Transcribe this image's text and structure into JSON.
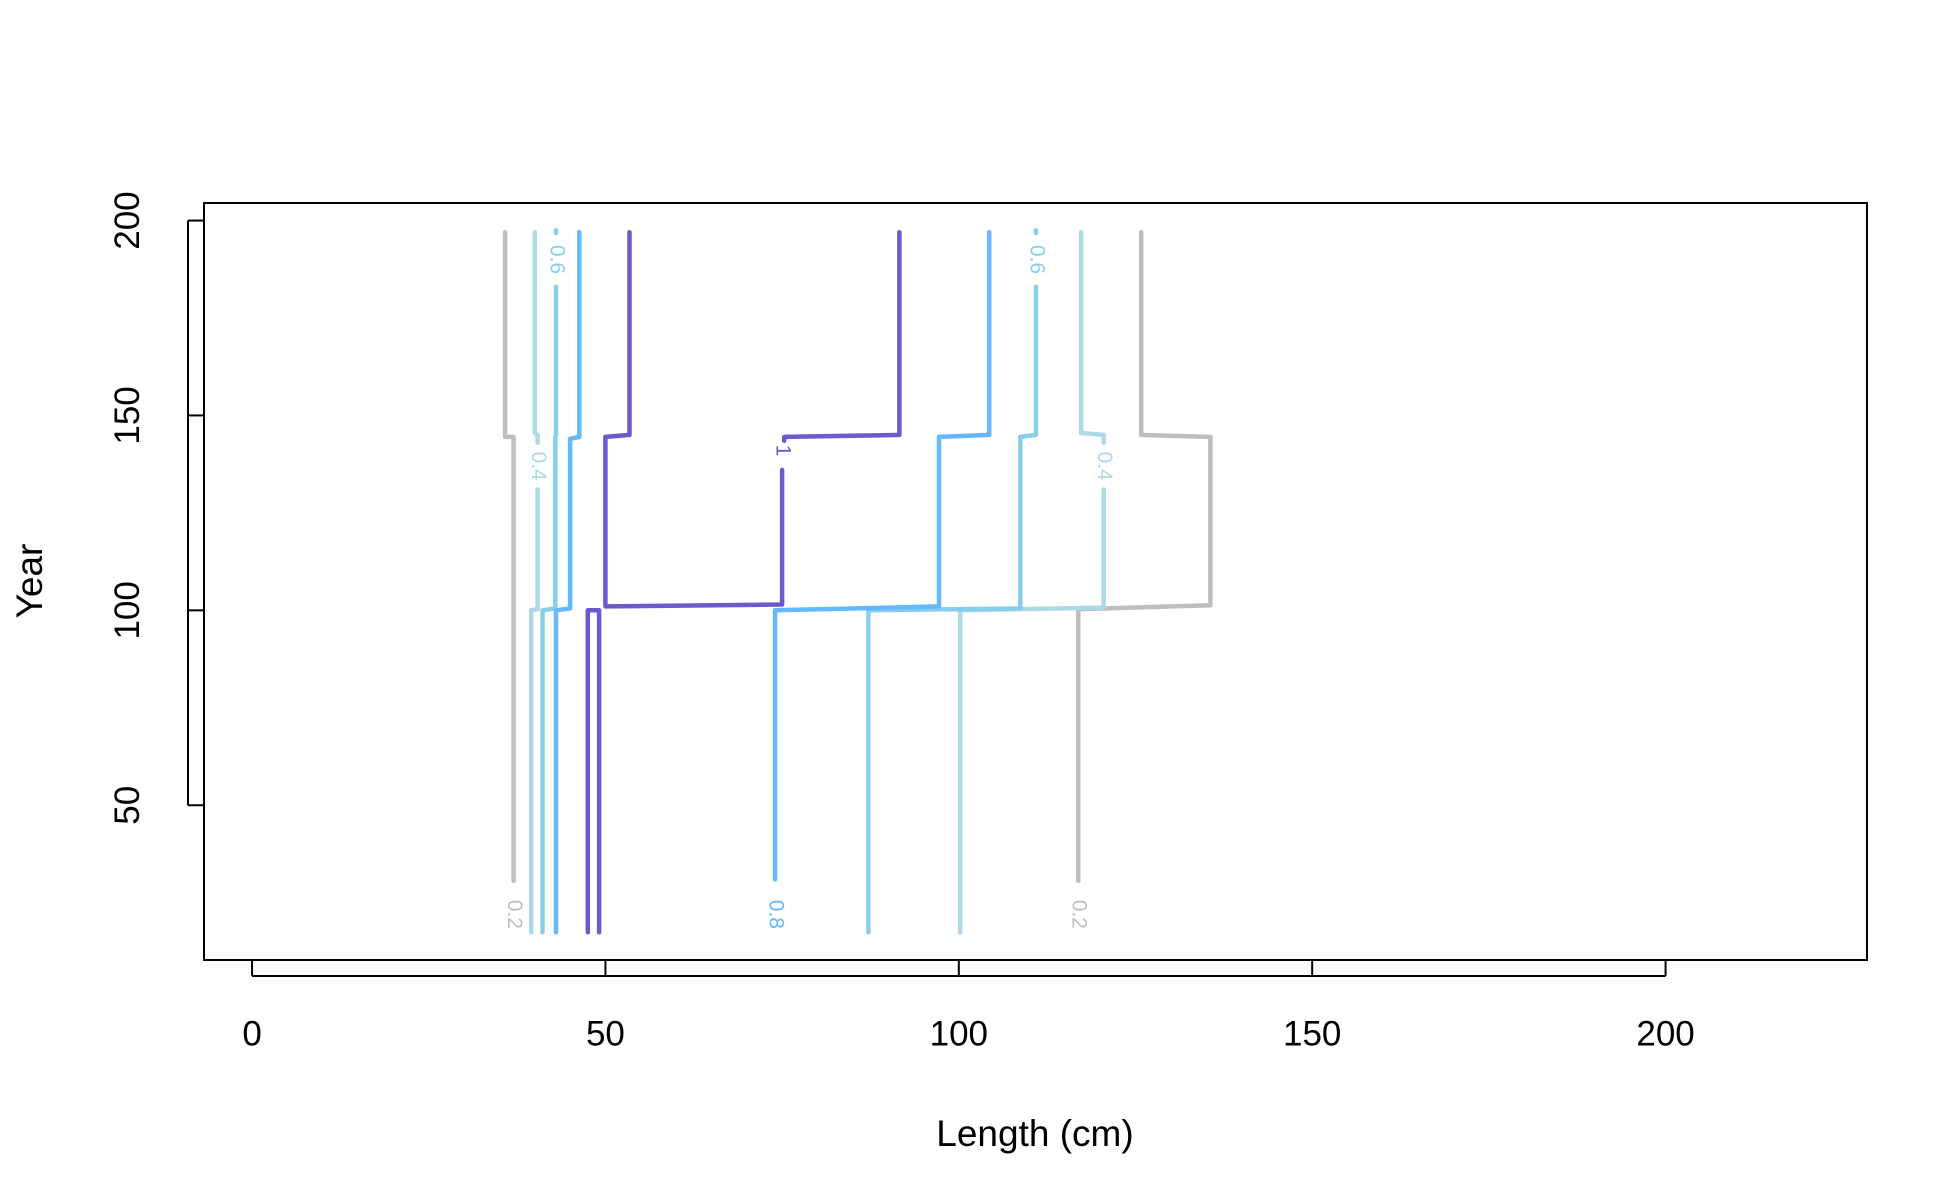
{
  "chart_data": {
    "type": "contour",
    "x_label": "Length (cm)",
    "y_label": "Year",
    "xlim": [
      -6.8,
      228.5
    ],
    "ylim": [
      10.3,
      204.5
    ],
    "xticks": [
      0,
      50,
      100,
      150,
      200
    ],
    "yticks": [
      50,
      100,
      150,
      200
    ],
    "series": [
      {
        "level": 0.2,
        "color": "#bebebe",
        "x": [
          35.8,
          35.8,
          37,
          37,
          null,
          125.8,
          125.8,
          135.6,
          135.6,
          116.9,
          116.9
        ],
        "y": [
          197,
          144.5,
          144.5,
          30.6,
          null,
          197,
          145,
          144.5,
          101.3,
          100.3,
          30.6
        ],
        "labels": [
          {
            "x": 37,
            "y": 22
          },
          {
            "x": 116.9,
            "y": 22
          }
        ]
      },
      {
        "level": 0.4,
        "color": "#add8e6",
        "x": [
          40,
          40,
          40.4,
          40.4,
          null,
          40.4,
          40.4,
          39.5,
          39.5,
          null,
          117.3,
          117.3,
          120.5,
          120.5,
          null,
          120.5,
          120.5,
          100.2,
          100.2
        ],
        "y": [
          197,
          145.5,
          145,
          143,
          null,
          131,
          100.3,
          100,
          17.4,
          null,
          197,
          145.5,
          145,
          143,
          null,
          131,
          100.7,
          100,
          17.4
        ],
        "labels": [
          {
            "x": 40.4,
            "y": 137
          },
          {
            "x": 120.5,
            "y": 137
          }
        ]
      },
      {
        "level": 0.6,
        "color": "#87ceeb",
        "x": [
          43,
          43,
          null,
          43,
          43,
          42.9,
          42.9,
          41.1,
          41.1,
          null,
          110.9,
          110.9,
          null,
          110.9,
          110.9,
          108.7,
          108.7,
          87.2,
          87.2
        ],
        "y": [
          197.5,
          196.8,
          null,
          183,
          145,
          144.5,
          100.5,
          100,
          17.4,
          null,
          197.5,
          196.8,
          null,
          183,
          145,
          144.5,
          100.5,
          100,
          17.4
        ],
        "labels": [
          {
            "x": 43,
            "y": 190
          },
          {
            "x": 110.9,
            "y": 190
          }
        ]
      },
      {
        "level": 0.8,
        "color": "#63b8ff",
        "x": [
          46.3,
          46.3,
          45,
          45,
          43,
          43,
          null,
          104.3,
          104.3,
          97.2,
          97.2,
          74,
          74
        ],
        "y": [
          197,
          144.5,
          144,
          100.5,
          100,
          17.4,
          null,
          197,
          145,
          144.5,
          101,
          100,
          31
        ],
        "labels": [
          {
            "x": 74,
            "y": 22
          }
        ]
      },
      {
        "level": 1,
        "color": "#6a5acd",
        "x": [
          53.4,
          53.4,
          50,
          50,
          75,
          75,
          null,
          75.3,
          75.3,
          91.6,
          91.6,
          null,
          47.5,
          47.5,
          49.1,
          49.1
        ],
        "y": [
          197,
          145,
          144.5,
          101,
          101.5,
          136,
          null,
          143.5,
          144.5,
          145,
          197,
          null,
          17.4,
          100,
          100,
          17.4
        ],
        "labels": [
          {
            "x": 75,
            "y": 141
          }
        ]
      }
    ]
  }
}
